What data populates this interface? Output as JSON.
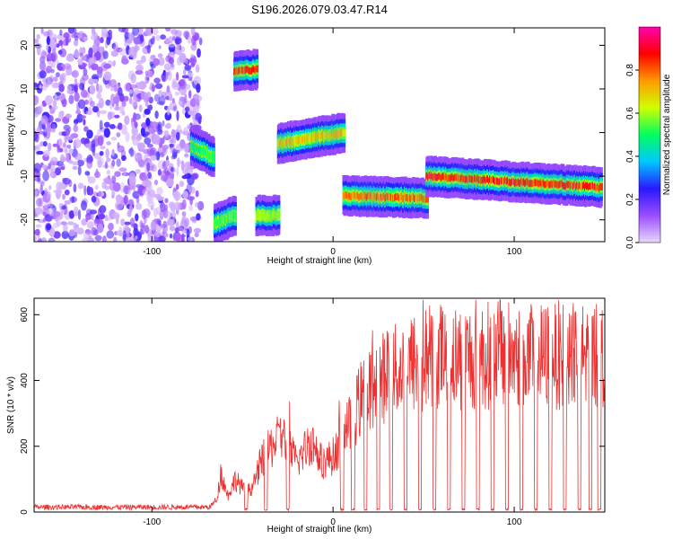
{
  "chart_data": [
    {
      "type": "heatmap",
      "title": "S196.2026.079.03.47.R14",
      "xlabel": "Height of straight line (km)",
      "ylabel": "Frequency (Hz)",
      "xlim": [
        -165,
        150
      ],
      "ylim": [
        -25,
        24
      ],
      "xticks": [
        -100,
        0,
        100
      ],
      "yticks": [
        -20,
        -10,
        0,
        10,
        20
      ],
      "colorbar": {
        "label": "Normalized spectral amplitude",
        "range": [
          0,
          1
        ],
        "ticks": [
          "0.0",
          "0.2",
          "0.4",
          "0.6",
          "0.8"
        ],
        "colors": [
          "#e8d8ff",
          "#9a4dff",
          "#2a18ff",
          "#00c8ff",
          "#00ff60",
          "#d0ff00",
          "#ff9a00",
          "#ff0000",
          "#ff00b0"
        ]
      },
      "noise_region_x": [
        -165,
        -73
      ],
      "ridge_segments": [
        {
          "x0": -78,
          "x1": -66,
          "f0": -3,
          "f1": -5.5,
          "amp": 0.55
        },
        {
          "x0": -65,
          "x1": -54,
          "f0": -21,
          "f1": -19,
          "amp": 0.6
        },
        {
          "x0": -54,
          "x1": -42,
          "f0": 14,
          "f1": 14.5,
          "amp": 0.9
        },
        {
          "x0": -42,
          "x1": -30,
          "f0": -19,
          "f1": -19,
          "amp": 0.65
        },
        {
          "x0": -30,
          "x1": 6,
          "f0": -2.5,
          "f1": 0,
          "amp": 0.75
        },
        {
          "x0": 6,
          "x1": 52,
          "f0": -14.5,
          "f1": -15,
          "amp": 0.85
        },
        {
          "x0": 52,
          "x1": 148,
          "f0": -10,
          "f1": -12.5,
          "amp": 0.9
        }
      ]
    },
    {
      "type": "line",
      "xlabel": "Height of straight line (km)",
      "ylabel": "SNR (10 * v/v)",
      "xlim": [
        -165,
        150
      ],
      "ylim": [
        0,
        650
      ],
      "xticks": [
        -100,
        0,
        100
      ],
      "yticks": [
        0,
        200,
        400,
        600
      ],
      "color": "#ee3030",
      "envelope": [
        {
          "x": -165,
          "y": 15
        },
        {
          "x": -68,
          "y": 15
        },
        {
          "x": -64,
          "y": 40
        },
        {
          "x": -62,
          "y": 120
        },
        {
          "x": -58,
          "y": 50
        },
        {
          "x": -54,
          "y": 100
        },
        {
          "x": -48,
          "y": 60
        },
        {
          "x": -44,
          "y": 80
        },
        {
          "x": -40,
          "y": 150
        },
        {
          "x": -34,
          "y": 200
        },
        {
          "x": -28,
          "y": 230
        },
        {
          "x": -20,
          "y": 150
        },
        {
          "x": -12,
          "y": 220
        },
        {
          "x": -6,
          "y": 150
        },
        {
          "x": 0,
          "y": 170
        },
        {
          "x": 6,
          "y": 230
        },
        {
          "x": 12,
          "y": 300
        },
        {
          "x": 18,
          "y": 380
        },
        {
          "x": 28,
          "y": 410
        },
        {
          "x": 40,
          "y": 440
        },
        {
          "x": 55,
          "y": 480
        },
        {
          "x": 70,
          "y": 470
        },
        {
          "x": 90,
          "y": 480
        },
        {
          "x": 110,
          "y": 470
        },
        {
          "x": 130,
          "y": 480
        },
        {
          "x": 150,
          "y": 470
        }
      ],
      "drop_x": [
        -48,
        -37,
        -25,
        5,
        11,
        18,
        25,
        32,
        40,
        48,
        56,
        64,
        72,
        80,
        88,
        96,
        104,
        112,
        120,
        128,
        136,
        142,
        147
      ]
    }
  ]
}
